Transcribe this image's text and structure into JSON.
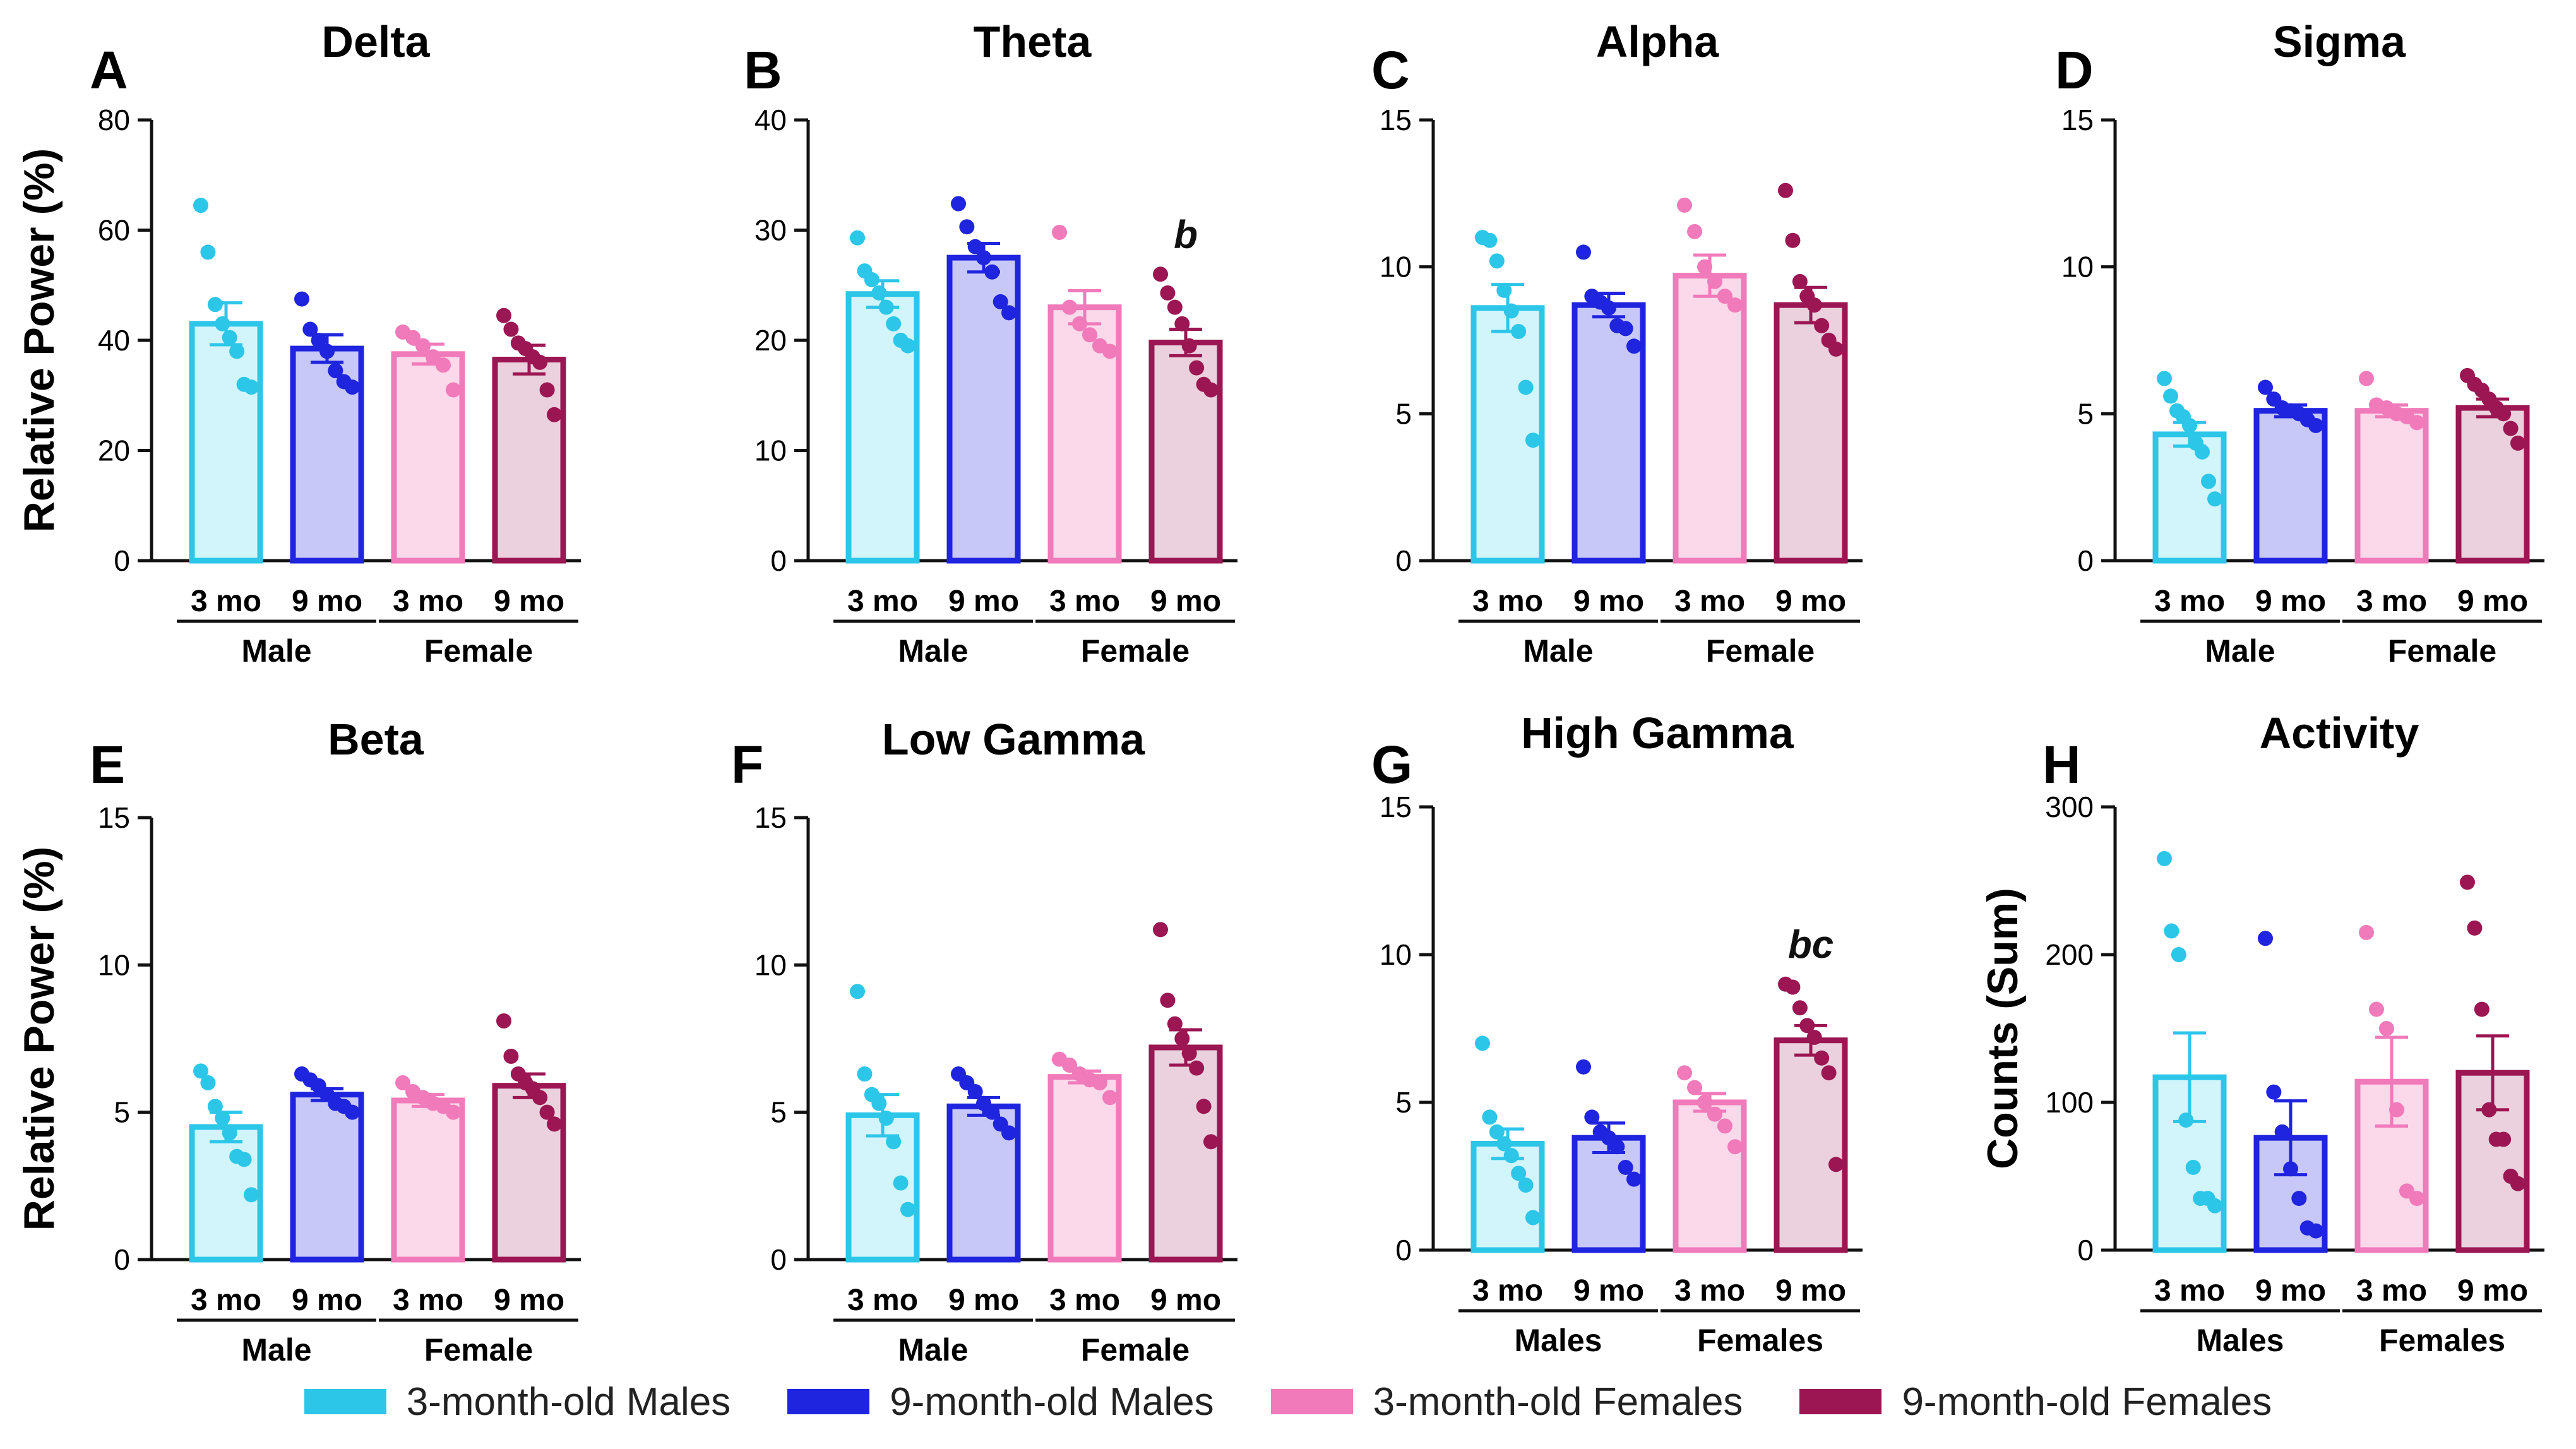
{
  "colors": {
    "m3": {
      "fill": "#d2f5fc",
      "stroke": "#2cc6e8",
      "dot": "#2cc6e8"
    },
    "m9": {
      "fill": "#c7c8f8",
      "stroke": "#1f24de",
      "dot": "#1f24de"
    },
    "f3": {
      "fill": "#fbd8ea",
      "stroke": "#f07aba",
      "dot": "#f07aba"
    },
    "f9": {
      "fill": "#ead1dd",
      "stroke": "#9b1652",
      "dot": "#9b1652"
    }
  },
  "legend": [
    {
      "key": "m3",
      "label": "3-month-old Males"
    },
    {
      "key": "m9",
      "label": "9-month-old Males"
    },
    {
      "key": "f3",
      "label": "3-month-old Females"
    },
    {
      "key": "f9",
      "label": "9-month-old Females"
    }
  ],
  "chart_data": [
    {
      "id": "A",
      "type": "bar",
      "title": "Delta",
      "ylabel": "Relative Power (%)",
      "ylim": [
        0,
        80
      ],
      "yticks": [
        0,
        20,
        40,
        60,
        80
      ],
      "categories": [
        "3 mo",
        "9 mo",
        "3 mo",
        "9 mo"
      ],
      "groups": [
        "Male",
        "Female"
      ],
      "keys": [
        "m3",
        "m9",
        "f3",
        "f9"
      ],
      "means": [
        43,
        38.5,
        37.5,
        36.5
      ],
      "sem": [
        3.8,
        2.5,
        1.8,
        2.6
      ],
      "points": [
        [
          64.5,
          56,
          46.5,
          43,
          40.5,
          38,
          32,
          31.5
        ],
        [
          47.5,
          42,
          40,
          38,
          34.5,
          32.5,
          31.5
        ],
        [
          41.5,
          40.5,
          39,
          37,
          35.5,
          31
        ],
        [
          44.5,
          42,
          39.5,
          38.5,
          37,
          36,
          31,
          26.5
        ]
      ]
    },
    {
      "id": "B",
      "type": "bar",
      "title": "Theta",
      "ylabel": "",
      "ylim": [
        0,
        40
      ],
      "yticks": [
        0,
        10,
        20,
        30,
        40
      ],
      "categories": [
        "3 mo",
        "9 mo",
        "3 mo",
        "9 mo"
      ],
      "groups": [
        "Male",
        "Female"
      ],
      "keys": [
        "m3",
        "m9",
        "f3",
        "f9"
      ],
      "means": [
        24.2,
        27.5,
        23,
        19.8
      ],
      "sem": [
        1.2,
        1.3,
        1.5,
        1.2
      ],
      "points": [
        [
          29.3,
          26.3,
          25.5,
          24.3,
          23,
          21.5,
          20,
          19.5
        ],
        [
          32.4,
          30.3,
          28.5,
          27.5,
          26.2,
          23.5,
          22.5
        ],
        [
          29.8,
          23,
          21.5,
          20.5,
          19.5,
          19
        ],
        [
          26,
          24.3,
          23,
          21.5,
          19.5,
          17.5,
          16,
          15.5
        ]
      ],
      "annotations": [
        {
          "index": 3,
          "text": "b"
        }
      ]
    },
    {
      "id": "C",
      "type": "bar",
      "title": "Alpha",
      "ylabel": "",
      "ylim": [
        0,
        15
      ],
      "yticks": [
        0,
        5,
        10,
        15
      ],
      "categories": [
        "3 mo",
        "9 mo",
        "3 mo",
        "9 mo"
      ],
      "groups": [
        "Male",
        "Female"
      ],
      "keys": [
        "m3",
        "m9",
        "f3",
        "f9"
      ],
      "means": [
        8.6,
        8.7,
        9.7,
        8.7
      ],
      "sem": [
        0.8,
        0.4,
        0.7,
        0.6
      ],
      "points": [
        [
          11,
          10.9,
          10.2,
          9.2,
          8.5,
          7.8,
          5.9,
          4.1
        ],
        [
          10.5,
          9,
          8.8,
          8.6,
          8,
          7.9,
          7.3
        ],
        [
          12.1,
          11.2,
          10,
          9.5,
          9,
          8.7
        ],
        [
          12.6,
          10.9,
          9.5,
          9,
          8.7,
          8,
          7.5,
          7.2
        ]
      ]
    },
    {
      "id": "D",
      "type": "bar",
      "title": "Sigma",
      "ylabel": "",
      "ylim": [
        0,
        15
      ],
      "yticks": [
        0,
        5,
        10,
        15
      ],
      "categories": [
        "3 mo",
        "9 mo",
        "3 mo",
        "9 mo"
      ],
      "groups": [
        "Male",
        "Female"
      ],
      "keys": [
        "m3",
        "m9",
        "f3",
        "f9"
      ],
      "means": [
        4.3,
        5.1,
        5.1,
        5.2
      ],
      "sem": [
        0.4,
        0.2,
        0.2,
        0.3
      ],
      "points": [
        [
          6.2,
          5.6,
          5.1,
          4.9,
          4.6,
          4,
          3.7,
          2.7,
          2.1
        ],
        [
          5.9,
          5.5,
          5.2,
          5.1,
          5,
          4.8,
          4.6
        ],
        [
          6.2,
          5.3,
          5.2,
          5,
          4.9,
          4.7
        ],
        [
          6.3,
          6,
          5.8,
          5.5,
          5.2,
          5,
          4.5,
          4
        ]
      ]
    },
    {
      "id": "E",
      "type": "bar",
      "title": "Beta",
      "ylabel": "Relative Power (%)",
      "ylim": [
        0,
        15
      ],
      "yticks": [
        0,
        5,
        10,
        15
      ],
      "categories": [
        "3 mo",
        "9 mo",
        "3 mo",
        "9 mo"
      ],
      "groups": [
        "Male",
        "Female"
      ],
      "keys": [
        "m3",
        "m9",
        "f3",
        "f9"
      ],
      "means": [
        4.5,
        5.6,
        5.4,
        5.9
      ],
      "sem": [
        0.5,
        0.2,
        0.2,
        0.4
      ],
      "points": [
        [
          6.4,
          6,
          5.2,
          4.8,
          4.3,
          3.5,
          3.4,
          2.2
        ],
        [
          6.3,
          6.1,
          5.9,
          5.6,
          5.3,
          5.2,
          5
        ],
        [
          6,
          5.7,
          5.5,
          5.3,
          5.2,
          5
        ],
        [
          8.1,
          6.9,
          6.3,
          6,
          5.8,
          5.5,
          5,
          4.6
        ]
      ]
    },
    {
      "id": "F",
      "type": "bar",
      "title": "Low Gamma",
      "ylabel": "",
      "ylim": [
        0,
        15
      ],
      "yticks": [
        0,
        5,
        10,
        15
      ],
      "categories": [
        "3 mo",
        "9 mo",
        "3 mo",
        "9 mo"
      ],
      "groups": [
        "Male",
        "Female"
      ],
      "keys": [
        "m3",
        "m9",
        "f3",
        "f9"
      ],
      "means": [
        4.9,
        5.2,
        6.2,
        7.2
      ],
      "sem": [
        0.7,
        0.3,
        0.2,
        0.6
      ],
      "points": [
        [
          9.1,
          6.3,
          5.6,
          5.3,
          4.8,
          4,
          2.6,
          1.7
        ],
        [
          6.3,
          6,
          5.7,
          5.3,
          5,
          4.6,
          4.3
        ],
        [
          6.8,
          6.6,
          6.3,
          6.1,
          6,
          5.5
        ],
        [
          11.2,
          8.8,
          8,
          7.5,
          7,
          6.5,
          5.2,
          4
        ]
      ]
    },
    {
      "id": "G",
      "type": "bar",
      "title": "High Gamma",
      "ylabel": "",
      "ylim": [
        0,
        15
      ],
      "yticks": [
        0,
        5,
        10,
        15
      ],
      "categories": [
        "3 mo",
        "9 mo",
        "3 mo",
        "9 mo"
      ],
      "groups": [
        "Males",
        "Females"
      ],
      "keys": [
        "m3",
        "m9",
        "f3",
        "f9"
      ],
      "means": [
        3.6,
        3.8,
        5,
        7.1
      ],
      "sem": [
        0.5,
        0.5,
        0.3,
        0.5
      ],
      "points": [
        [
          7,
          4.5,
          4,
          3.6,
          3.2,
          2.6,
          2.2,
          1.1
        ],
        [
          6.2,
          4.5,
          4,
          3.8,
          3.5,
          2.8,
          2.4
        ],
        [
          6,
          5.5,
          5,
          4.6,
          4.2,
          3.5
        ],
        [
          9,
          8.9,
          8.2,
          7.6,
          7.2,
          6.5,
          6,
          2.9
        ]
      ],
      "annotations": [
        {
          "index": 3,
          "text": "bc"
        }
      ]
    },
    {
      "id": "H",
      "type": "bar",
      "title": "Activity",
      "ylabel": "Counts (Sum)",
      "ylim": [
        0,
        300
      ],
      "yticks": [
        0,
        100,
        200,
        300
      ],
      "categories": [
        "3 mo",
        "9 mo",
        "3 mo",
        "9 mo"
      ],
      "groups": [
        "Males",
        "Females"
      ],
      "keys": [
        "m3",
        "m9",
        "f3",
        "f9"
      ],
      "means": [
        117,
        76,
        114,
        120
      ],
      "sem": [
        30,
        25,
        30,
        25
      ],
      "points": [
        [
          265,
          216,
          200,
          88,
          56,
          35,
          35,
          30
        ],
        [
          211,
          107,
          80,
          55,
          35,
          15,
          13
        ],
        [
          215,
          163,
          150,
          95,
          40,
          35
        ],
        [
          249,
          218,
          163,
          95,
          75,
          75,
          50,
          45
        ]
      ]
    }
  ]
}
